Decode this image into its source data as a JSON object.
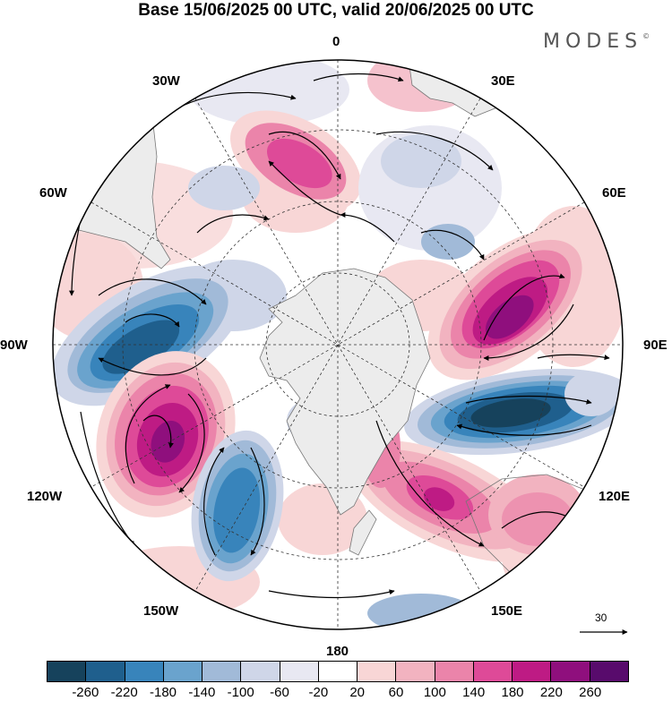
{
  "header": {
    "title": "Base 15/06/2025 00 UTC, valid 20/06/2025 00 UTC",
    "brand": "MODES",
    "brand_mark": "©"
  },
  "map": {
    "projection": "south-polar-stereographic",
    "longitude_labels": {
      "lon_0": "0",
      "lon_30e": "30E",
      "lon_60e": "60E",
      "lon_90e": "90E",
      "lon_120e": "120E",
      "lon_150e": "150E",
      "lon_180": "180",
      "lon_150w": "150W",
      "lon_120w": "120W",
      "lon_90w": "90W",
      "lon_60w": "60W",
      "lon_30w": "30W"
    },
    "reference_vector": "30",
    "colors": {
      "land": "#ececec",
      "grid": "#333333"
    }
  },
  "colorbar": {
    "colors": [
      "#16425c",
      "#1f5f8d",
      "#3884bb",
      "#6aa3cd",
      "#a1bad8",
      "#cfd6e8",
      "#e8e8f2",
      "#ffffff",
      "#f8d6d6",
      "#f2b3c0",
      "#eb84aa",
      "#de4a98",
      "#be1b84",
      "#8f0f7d",
      "#580b6c"
    ],
    "ticks": [
      "-260",
      "-220",
      "-180",
      "-140",
      "-100",
      "-60",
      "-20",
      "20",
      "60",
      "100",
      "140",
      "180",
      "220",
      "260"
    ]
  }
}
